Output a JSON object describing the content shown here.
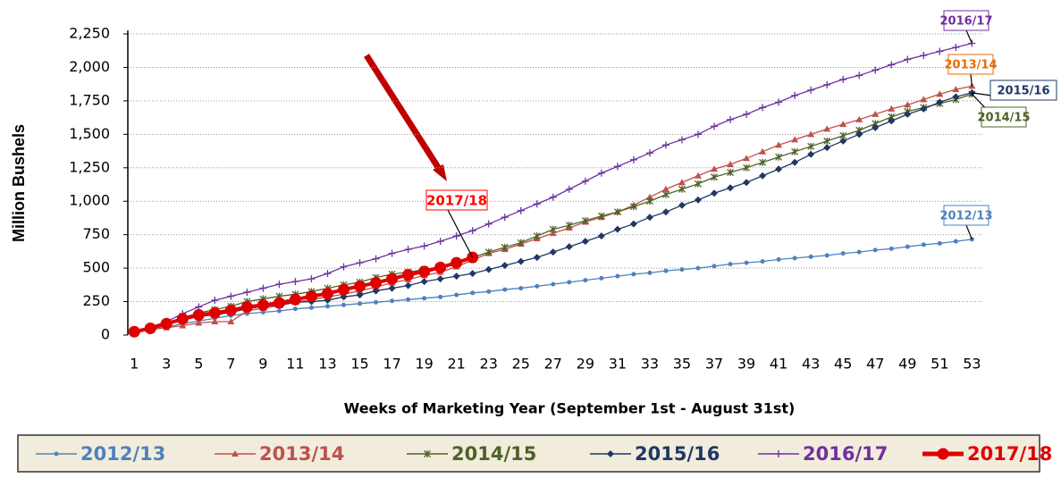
{
  "chart_data": {
    "type": "line",
    "y_label": "Million Bushels",
    "x_label": "Weeks of Marketing Year (September 1st - August 31st)",
    "x": [
      1,
      2,
      3,
      4,
      5,
      6,
      7,
      8,
      9,
      10,
      11,
      12,
      13,
      14,
      15,
      16,
      17,
      18,
      19,
      20,
      21,
      22,
      23,
      24,
      25,
      26,
      27,
      28,
      29,
      30,
      31,
      32,
      33,
      34,
      35,
      36,
      37,
      38,
      39,
      40,
      41,
      42,
      43,
      44,
      45,
      46,
      47,
      48,
      49,
      50,
      51,
      52,
      53
    ],
    "xlim": [
      0.6,
      53.7
    ],
    "xticks": [
      1,
      3,
      5,
      7,
      9,
      11,
      13,
      15,
      17,
      19,
      21,
      23,
      25,
      27,
      29,
      31,
      33,
      35,
      37,
      39,
      41,
      43,
      45,
      47,
      49,
      51,
      53
    ],
    "ylim": [
      0,
      2250
    ],
    "yticks": [
      0,
      250,
      500,
      750,
      {
        "value": 1000,
        "label": "1,000"
      },
      {
        "value": 1250,
        "label": "1,250"
      },
      {
        "value": 1500,
        "label": "1,500"
      },
      {
        "value": 1750,
        "label": "1,750"
      },
      {
        "value": 2000,
        "label": "2,000"
      },
      {
        "value": 2250,
        "label": "2,250"
      }
    ],
    "grid": true,
    "series": [
      {
        "name": "2012/13",
        "color": "#4f81bd",
        "marker": "circle",
        "values": [
          25,
          40,
          60,
          85,
          105,
          125,
          145,
          160,
          170,
          180,
          195,
          205,
          215,
          225,
          235,
          245,
          255,
          265,
          275,
          285,
          300,
          315,
          325,
          340,
          350,
          365,
          380,
          395,
          410,
          425,
          440,
          455,
          465,
          480,
          490,
          500,
          515,
          530,
          540,
          550,
          565,
          575,
          585,
          595,
          610,
          620,
          635,
          645,
          660,
          675,
          685,
          700,
          715
        ]
      },
      {
        "name": "2013/14",
        "color": "#c0504d",
        "marker": "triangle",
        "values": [
          25,
          40,
          55,
          70,
          90,
          100,
          100,
          180,
          200,
          220,
          245,
          265,
          285,
          305,
          330,
          360,
          390,
          415,
          445,
          470,
          510,
          560,
          610,
          640,
          680,
          720,
          760,
          800,
          845,
          880,
          920,
          970,
          1030,
          1090,
          1140,
          1190,
          1240,
          1275,
          1320,
          1370,
          1420,
          1460,
          1500,
          1540,
          1575,
          1610,
          1650,
          1690,
          1720,
          1760,
          1800,
          1835,
          1860
        ]
      },
      {
        "name": "2014/15",
        "color": "#4f6228",
        "marker": "star",
        "values": [
          25,
          45,
          85,
          130,
          165,
          190,
          215,
          250,
          270,
          290,
          305,
          325,
          350,
          375,
          395,
          430,
          455,
          470,
          490,
          510,
          540,
          580,
          620,
          655,
          690,
          740,
          790,
          820,
          855,
          890,
          920,
          960,
          1000,
          1050,
          1090,
          1130,
          1180,
          1215,
          1250,
          1290,
          1330,
          1370,
          1410,
          1450,
          1490,
          1530,
          1580,
          1630,
          1670,
          1700,
          1730,
          1760,
          1800
        ]
      },
      {
        "name": "2015/16",
        "color": "#1f3864",
        "marker": "diamond",
        "values": [
          25,
          50,
          80,
          110,
          140,
          150,
          170,
          195,
          215,
          225,
          245,
          250,
          260,
          285,
          300,
          330,
          350,
          370,
          400,
          420,
          440,
          460,
          490,
          520,
          550,
          580,
          620,
          660,
          700,
          740,
          790,
          830,
          880,
          920,
          970,
          1010,
          1060,
          1100,
          1140,
          1190,
          1240,
          1290,
          1350,
          1400,
          1450,
          1500,
          1550,
          1600,
          1650,
          1690,
          1740,
          1780,
          1810
        ]
      },
      {
        "name": "2016/17",
        "color": "#7030a0",
        "marker": "plus",
        "values": [
          25,
          60,
          100,
          160,
          210,
          260,
          290,
          320,
          350,
          380,
          400,
          420,
          460,
          510,
          540,
          570,
          610,
          640,
          665,
          700,
          740,
          780,
          830,
          880,
          930,
          980,
          1030,
          1090,
          1150,
          1210,
          1260,
          1310,
          1360,
          1420,
          1460,
          1500,
          1560,
          1610,
          1650,
          1700,
          1740,
          1790,
          1830,
          1870,
          1910,
          1940,
          1980,
          2020,
          2060,
          2090,
          2120,
          2150,
          2180
        ]
      },
      {
        "name": "2017/18",
        "color": "#e00000",
        "marker": "big-circle",
        "values": [
          25,
          50,
          85,
          120,
          150,
          165,
          185,
          210,
          225,
          240,
          265,
          290,
          310,
          340,
          365,
          390,
          420,
          450,
          475,
          505,
          540,
          580,
          null,
          null,
          null,
          null,
          null,
          null,
          null,
          null,
          null,
          null,
          null,
          null,
          null,
          null,
          null,
          null,
          null,
          null,
          null,
          null,
          null,
          null,
          null,
          null,
          null,
          null,
          null,
          null,
          null,
          null,
          null
        ]
      }
    ]
  }
}
